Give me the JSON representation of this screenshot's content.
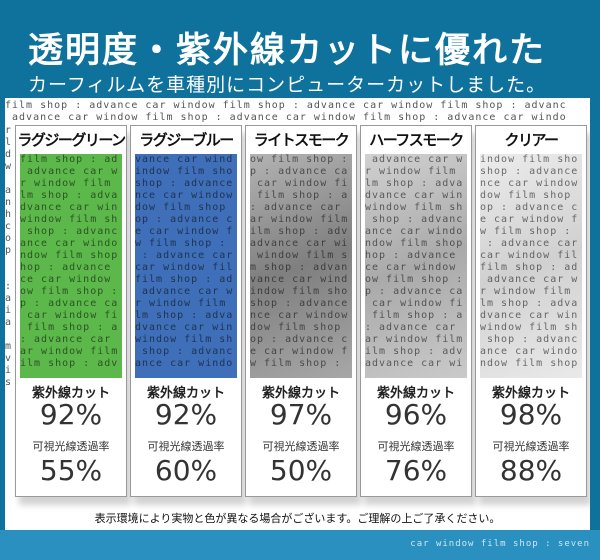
{
  "header": {
    "title": "透明度・紫外線カットに優れた",
    "subtitle": "カーフィルムを車種別にコンピューターカットしました。"
  },
  "watermark": "film shop : advance car window ",
  "labels": {
    "uv": "紫外線カット",
    "visible": "可視光線透過率"
  },
  "films": [
    {
      "name": "ラグジーグリーン",
      "uv": "92%",
      "visible": "55%",
      "color": "#5cb84a"
    },
    {
      "name": "ラグジーブルー",
      "uv": "92%",
      "visible": "60%",
      "color": "#3f6fb8"
    },
    {
      "name": "ライトスモーク",
      "uv": "97%",
      "visible": "50%",
      "color": "#8a8a8a"
    },
    {
      "name": "ハーフスモーク",
      "uv": "96%",
      "visible": "76%",
      "color": "#b8b8b8"
    },
    {
      "name": "クリアー",
      "uv": "98%",
      "visible": "88%",
      "color": "#e2e2e2"
    }
  ],
  "note": "表示環境により実物と色が異なる場合がございます。ご理解の上ご了承ください。",
  "footer": {
    "shop": "car window film shop : seven"
  }
}
